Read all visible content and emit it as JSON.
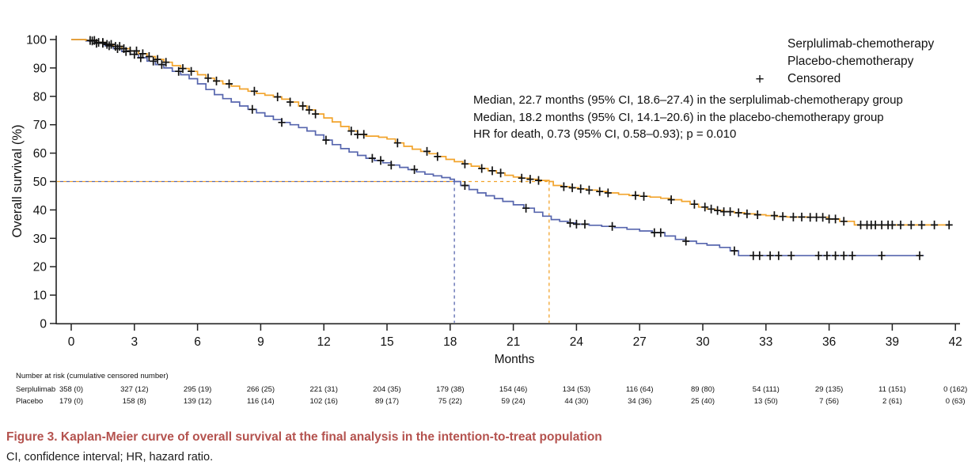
{
  "figure": {
    "caption": "Figure 3.  Kaplan-Meier curve of overall survival at the final analysis in the intention-to-treat population",
    "footnote": "CI, confidence interval; HR, hazard ratio."
  },
  "annotation": {
    "line1": "Median, 22.7 months (95% CI, 18.6–27.4) in the serplulimab-chemotherapy group",
    "line2": "Median, 18.2 months (95% CI, 14.1–20.6) in the placebo-chemotherapy group",
    "line3": "HR for death, 0.73 (95% CI, 0.58–0.93); p = 0.010"
  },
  "legend": {
    "items": [
      {
        "label": "Serplulimab-chemotherapy",
        "type": "line",
        "color": "#F2A42C"
      },
      {
        "label": "Placebo-chemotherapy",
        "type": "line",
        "color": "#5766AE"
      },
      {
        "label": "Censored",
        "type": "marker",
        "marker": "+",
        "color": "#111111"
      }
    ]
  },
  "chart_data": {
    "type": "line",
    "subtype": "kaplan-meier-step",
    "xlabel": "Months",
    "ylabel": "Overall survival (%)",
    "xlim": [
      0,
      42
    ],
    "ylim": [
      0,
      100
    ],
    "x_ticks": [
      0,
      3,
      6,
      9,
      12,
      15,
      18,
      21,
      24,
      27,
      30,
      33,
      36,
      39,
      42
    ],
    "y_ticks": [
      0,
      10,
      20,
      30,
      40,
      50,
      60,
      70,
      80,
      90,
      100
    ],
    "grid": false,
    "legend_position": "top-right",
    "medians": {
      "survival_pct": 50,
      "serplulimab_months": 22.7,
      "placebo_months": 18.2
    },
    "series": [
      {
        "name": "Serplulimab-chemotherapy",
        "color": "#F2A42C",
        "points": [
          [
            0,
            100
          ],
          [
            0.7,
            99.7
          ],
          [
            1.2,
            99
          ],
          [
            1.6,
            98.3
          ],
          [
            2,
            97.6
          ],
          [
            2.4,
            96.8
          ],
          [
            2.8,
            96
          ],
          [
            3.2,
            95
          ],
          [
            3.6,
            94
          ],
          [
            4,
            93
          ],
          [
            4.4,
            92
          ],
          [
            4.8,
            90.8
          ],
          [
            5.2,
            89.8
          ],
          [
            5.6,
            88.8
          ],
          [
            6,
            87.6
          ],
          [
            6.4,
            86.4
          ],
          [
            6.8,
            85.4
          ],
          [
            7.2,
            84.4
          ],
          [
            7.6,
            83.6
          ],
          [
            8,
            82.6
          ],
          [
            8.4,
            81.8
          ],
          [
            8.8,
            81
          ],
          [
            9.2,
            80.4
          ],
          [
            9.6,
            79.8
          ],
          [
            10,
            79
          ],
          [
            10.4,
            78
          ],
          [
            10.8,
            76.6
          ],
          [
            11.2,
            75.2
          ],
          [
            11.6,
            73.8
          ],
          [
            12,
            72.4
          ],
          [
            12.4,
            71
          ],
          [
            12.8,
            69.4
          ],
          [
            13.2,
            67.8
          ],
          [
            13.6,
            66.6
          ],
          [
            14,
            66
          ],
          [
            14.6,
            65.6
          ],
          [
            15,
            65
          ],
          [
            15.4,
            63.6
          ],
          [
            15.8,
            62.4
          ],
          [
            16.2,
            61.4
          ],
          [
            16.6,
            60.6
          ],
          [
            17,
            59.8
          ],
          [
            17.4,
            58.8
          ],
          [
            17.8,
            57.8
          ],
          [
            18.2,
            57
          ],
          [
            18.6,
            56.2
          ],
          [
            19,
            55.4
          ],
          [
            19.4,
            54.6
          ],
          [
            19.8,
            53.8
          ],
          [
            20.2,
            53
          ],
          [
            20.6,
            52.2
          ],
          [
            21,
            51.6
          ],
          [
            21.4,
            51.2
          ],
          [
            21.8,
            50.8
          ],
          [
            22.2,
            50.4
          ],
          [
            22.7,
            50
          ],
          [
            22.9,
            48.6
          ],
          [
            23.3,
            48.2
          ],
          [
            23.7,
            47.8
          ],
          [
            24.1,
            47.4
          ],
          [
            24.5,
            47
          ],
          [
            25,
            46.5
          ],
          [
            25.5,
            46
          ],
          [
            26,
            45.5
          ],
          [
            26.5,
            45.1
          ],
          [
            27,
            44.8
          ],
          [
            27.5,
            44.5
          ],
          [
            28,
            44.1
          ],
          [
            28.5,
            43.6
          ],
          [
            29,
            43
          ],
          [
            29.4,
            42
          ],
          [
            29.8,
            41
          ],
          [
            30.2,
            40.3
          ],
          [
            30.6,
            39.8
          ],
          [
            31,
            39.4
          ],
          [
            31.5,
            39
          ],
          [
            32,
            38.6
          ],
          [
            32.5,
            38.3
          ],
          [
            33,
            38
          ],
          [
            33.5,
            37.7
          ],
          [
            34,
            37.5
          ],
          [
            35,
            37.4
          ],
          [
            36,
            36.8
          ],
          [
            36.5,
            36
          ],
          [
            37.2,
            34.7
          ],
          [
            41.7,
            34.7
          ]
        ],
        "censored_months": [
          0.9,
          1.1,
          1.3,
          1.5,
          1.7,
          1.9,
          2.1,
          2.3,
          2.5,
          2.8,
          3.1,
          3.4,
          3.7,
          4.1,
          4.5,
          5.3,
          5.7,
          6.5,
          6.9,
          7.5,
          8.7,
          9.8,
          10.4,
          11.0,
          11.3,
          11.6,
          13.3,
          13.6,
          13.9,
          15.5,
          16.9,
          17.4,
          18.7,
          19.5,
          20.0,
          20.4,
          21.4,
          21.8,
          22.2,
          23.4,
          23.8,
          24.2,
          24.6,
          25.1,
          25.5,
          26.8,
          27.2,
          28.5,
          29.6,
          30.1,
          30.4,
          30.7,
          31.0,
          31.3,
          31.7,
          32.1,
          32.6,
          33.4,
          33.8,
          34.3,
          34.7,
          35.1,
          35.4,
          35.7,
          36.0,
          36.3,
          36.7,
          37.5,
          37.8,
          38.0,
          38.2,
          38.5,
          38.8,
          39.0,
          39.4,
          39.9,
          40.4,
          41.0,
          41.7
        ]
      },
      {
        "name": "Placebo-chemotherapy",
        "color": "#5766AE",
        "points": [
          [
            0,
            100
          ],
          [
            0.7,
            99.5
          ],
          [
            1.2,
            98.7
          ],
          [
            1.6,
            97.8
          ],
          [
            2,
            96.8
          ],
          [
            2.4,
            95.8
          ],
          [
            2.8,
            94.8
          ],
          [
            3.2,
            93.6
          ],
          [
            3.6,
            92.4
          ],
          [
            4,
            91.2
          ],
          [
            4.4,
            90
          ],
          [
            4.8,
            88.8
          ],
          [
            5.2,
            87.6
          ],
          [
            5.6,
            86.2
          ],
          [
            6,
            84.4
          ],
          [
            6.4,
            82.4
          ],
          [
            6.8,
            80.6
          ],
          [
            7.2,
            79.2
          ],
          [
            7.6,
            78
          ],
          [
            8,
            76.6
          ],
          [
            8.4,
            75.4
          ],
          [
            8.8,
            74.2
          ],
          [
            9.2,
            73
          ],
          [
            9.6,
            71.8
          ],
          [
            10,
            70.8
          ],
          [
            10.4,
            70
          ],
          [
            10.8,
            69
          ],
          [
            11.2,
            67.8
          ],
          [
            11.6,
            66.4
          ],
          [
            12,
            64.6
          ],
          [
            12.4,
            63
          ],
          [
            12.8,
            61.6
          ],
          [
            13.2,
            60.4
          ],
          [
            13.6,
            59.2
          ],
          [
            14,
            58.2
          ],
          [
            14.4,
            57.4
          ],
          [
            14.8,
            56.6
          ],
          [
            15.2,
            55.8
          ],
          [
            15.6,
            55
          ],
          [
            16,
            54.2
          ],
          [
            16.4,
            53.4
          ],
          [
            16.8,
            52.6
          ],
          [
            17.2,
            52
          ],
          [
            17.6,
            51.4
          ],
          [
            18,
            50.8
          ],
          [
            18.2,
            50
          ],
          [
            18.5,
            48.6
          ],
          [
            18.9,
            47.2
          ],
          [
            19.3,
            46
          ],
          [
            19.7,
            45
          ],
          [
            20.1,
            44
          ],
          [
            20.5,
            43
          ],
          [
            21,
            41.8
          ],
          [
            21.5,
            40.6
          ],
          [
            22,
            39.2
          ],
          [
            22.4,
            37.8
          ],
          [
            22.8,
            36.6
          ],
          [
            23.2,
            36
          ],
          [
            23.6,
            35.4
          ],
          [
            24,
            35
          ],
          [
            24.6,
            34.6
          ],
          [
            25.2,
            34.2
          ],
          [
            25.8,
            33.8
          ],
          [
            26.4,
            33.2
          ],
          [
            27,
            32.6
          ],
          [
            27.6,
            32
          ],
          [
            28.2,
            30.8
          ],
          [
            28.7,
            29.6
          ],
          [
            29.2,
            29
          ],
          [
            29.7,
            28.2
          ],
          [
            30.2,
            27.6
          ],
          [
            30.8,
            26.8
          ],
          [
            31.3,
            25.6
          ],
          [
            31.7,
            23.9
          ],
          [
            40.5,
            23.9
          ]
        ],
        "censored_months": [
          1.0,
          1.2,
          1.5,
          1.8,
          2.2,
          2.6,
          3.0,
          3.3,
          3.9,
          4.3,
          5.1,
          8.6,
          10.0,
          12.1,
          14.3,
          14.7,
          15.2,
          16.3,
          18.7,
          21.6,
          23.7,
          24.0,
          24.4,
          25.7,
          27.7,
          28.0,
          29.2,
          31.5,
          32.4,
          32.7,
          33.2,
          33.6,
          34.2,
          35.5,
          35.9,
          36.3,
          36.7,
          37.1,
          38.5,
          40.3
        ]
      }
    ]
  },
  "risk_table": {
    "header": "Number at risk (cumulative censored number)",
    "months": [
      0,
      3,
      6,
      9,
      12,
      15,
      18,
      21,
      24,
      27,
      30,
      33,
      36,
      39,
      42
    ],
    "rows": [
      {
        "label": "Serplulimab",
        "values": [
          "358 (0)",
          "327 (12)",
          "295 (19)",
          "266 (25)",
          "221 (31)",
          "204 (35)",
          "179 (38)",
          "154 (46)",
          "134 (53)",
          "116 (64)",
          "89 (80)",
          "54 (111)",
          "29 (135)",
          "11 (151)",
          "0 (162)"
        ]
      },
      {
        "label": "Placebo",
        "values": [
          "179 (0)",
          "158 (8)",
          "139 (12)",
          "116 (14)",
          "102 (16)",
          "89 (17)",
          "75 (22)",
          "59 (24)",
          "44 (30)",
          "34 (36)",
          "25 (40)",
          "13 (50)",
          "7 (56)",
          "2 (61)",
          "0 (63)"
        ]
      }
    ]
  }
}
